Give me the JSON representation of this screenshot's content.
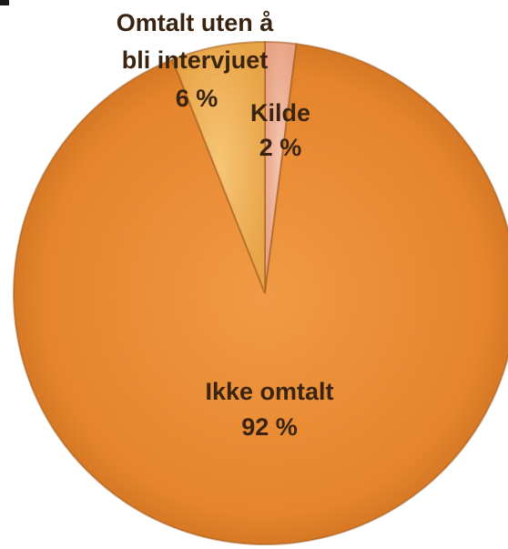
{
  "chart_data": {
    "type": "pie",
    "title": "",
    "slices": [
      {
        "label": "Kilde",
        "value": 2,
        "value_label": "2 %",
        "color": "#e9a98a"
      },
      {
        "label": "Ikke omtalt",
        "value": 92,
        "value_label": "92 %",
        "color": "#e8872f"
      },
      {
        "label": "Omtalt uten å bli intervjuet",
        "value": 6,
        "value_label": "6 %",
        "color": "#f1b65c"
      }
    ],
    "start_angle_deg": 0,
    "direction": "clockwise",
    "legend": "none",
    "labels_position": "on-slices"
  }
}
